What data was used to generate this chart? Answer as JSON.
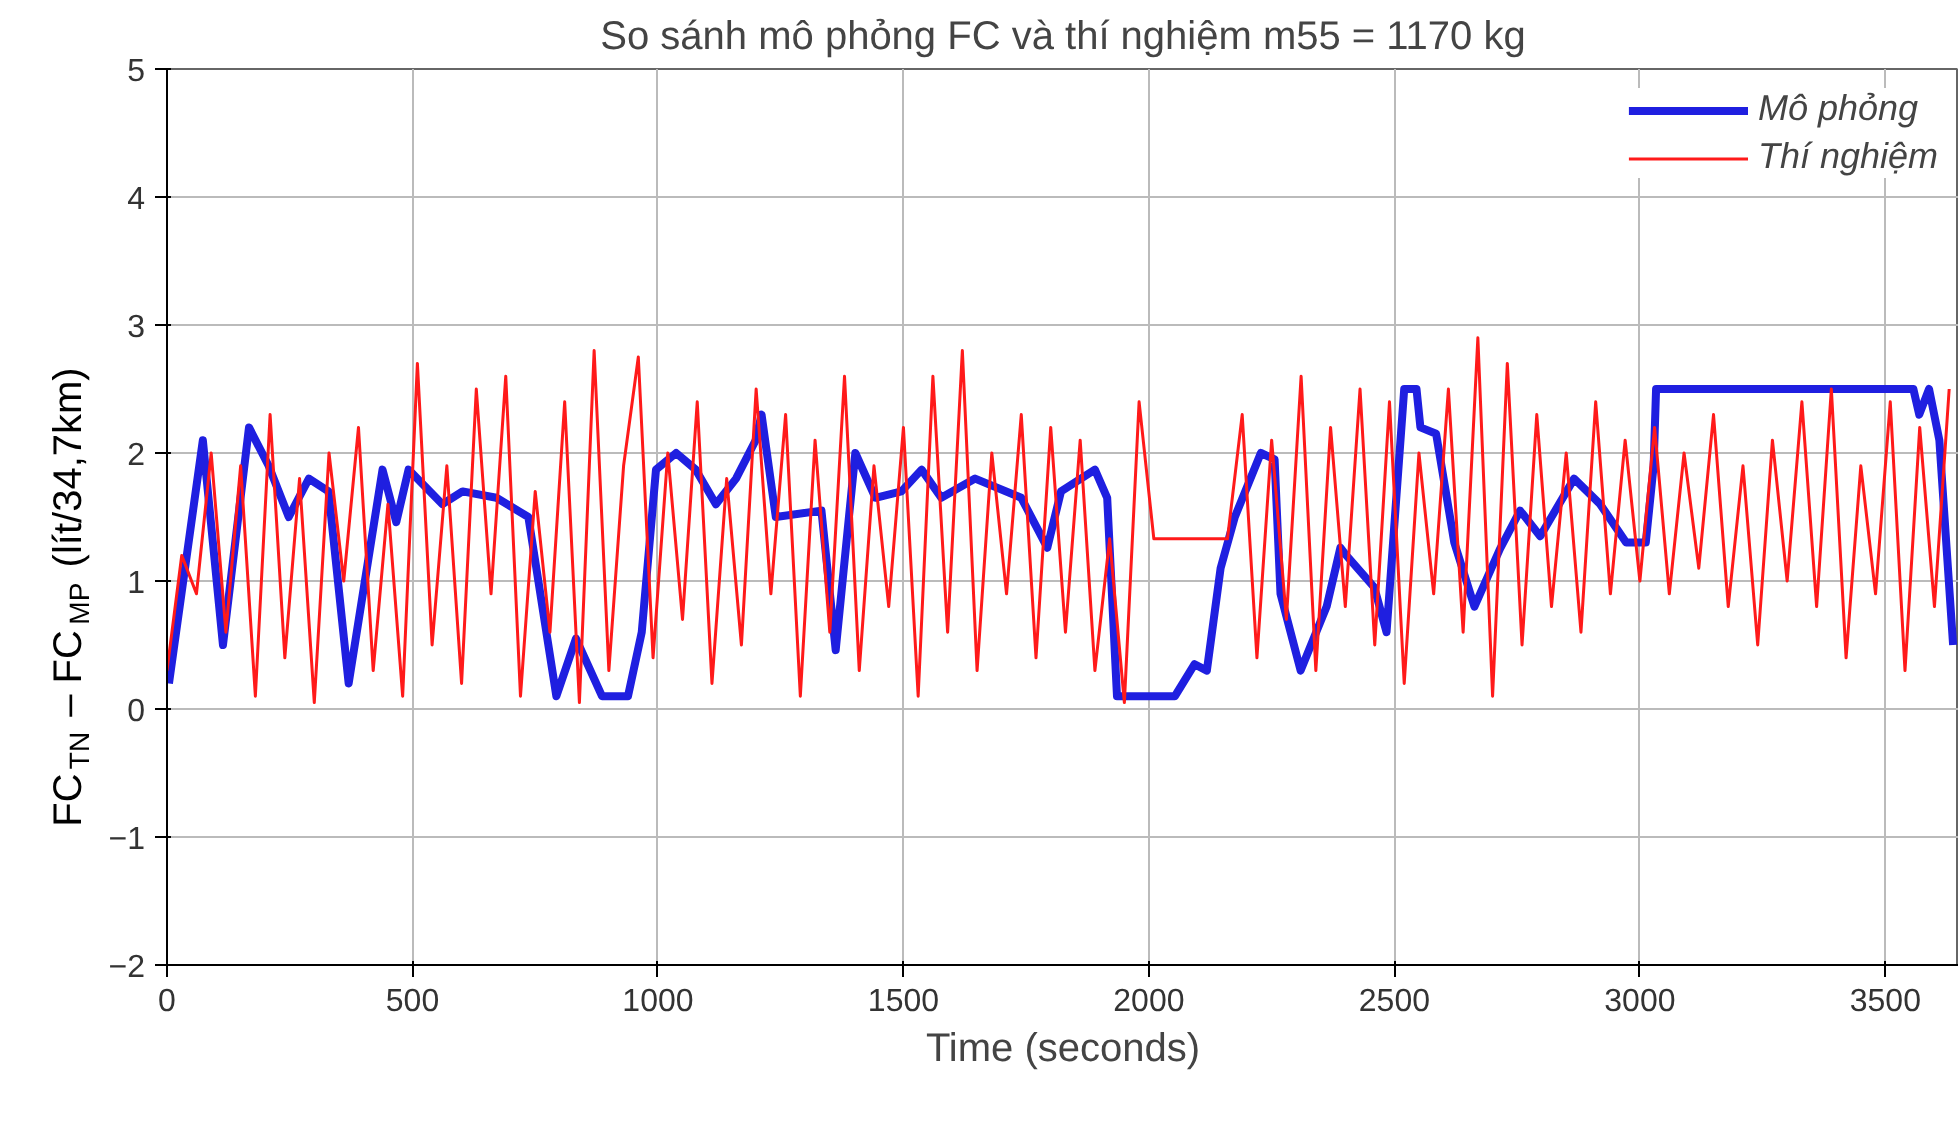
{
  "chart_data": {
    "type": "line",
    "title": "So sánh mô phỏng FC và thí nghiệm m55 = 1170 kg",
    "xlabel": "Time (seconds)",
    "ylabel": "FC$_{TN}$ – FC$_{MP}$ (lít/34,7km)",
    "xlim": [
      0,
      3650
    ],
    "ylim": [
      -2,
      5
    ],
    "xticks": [
      0,
      500,
      1000,
      1500,
      2000,
      2500,
      3000,
      3500
    ],
    "yticks": [
      -2,
      -1,
      0,
      1,
      2,
      3,
      4,
      5
    ],
    "grid": true,
    "legend": "top right",
    "series": [
      {
        "name": "Mô phỏng",
        "color": "#1f1fe0",
        "x": [
          4,
          73,
          114,
          167,
          207,
          248,
          289,
          329,
          370,
          439,
          467,
          492,
          561,
          602,
          671,
          736,
          793,
          833,
          886,
          939,
          967,
          996,
          1037,
          1077,
          1118,
          1159,
          1199,
          1211,
          1240,
          1333,
          1362,
          1402,
          1443,
          1496,
          1537,
          1577,
          1646,
          1740,
          1793,
          1821,
          1890,
          1915,
          1935,
          2053,
          2093,
          2118,
          2146,
          2175,
          2228,
          2256,
          2268,
          2309,
          2362,
          2390,
          2402,
          2459,
          2484,
          2520,
          2545,
          2553,
          2585,
          2622,
          2663,
          2715,
          2756,
          2797,
          2866,
          2919,
          2972,
          3012,
          3028,
          3033,
          3557,
          3569,
          3589,
          3610,
          3638
        ],
        "values": [
          0.2,
          2.1,
          0.5,
          2.2,
          1.9,
          1.5,
          1.8,
          1.7,
          0.2,
          1.87,
          1.46,
          1.87,
          1.6,
          1.7,
          1.65,
          1.5,
          0.1,
          0.55,
          0.1,
          0.1,
          0.6,
          1.87,
          2.0,
          1.87,
          1.6,
          1.8,
          2.1,
          2.3,
          1.5,
          1.55,
          0.46,
          2.0,
          1.65,
          1.7,
          1.87,
          1.65,
          1.8,
          1.65,
          1.26,
          1.7,
          1.87,
          1.65,
          0.1,
          0.1,
          0.35,
          0.3,
          1.1,
          1.5,
          2.0,
          1.95,
          0.9,
          0.3,
          0.8,
          1.26,
          1.2,
          0.95,
          0.6,
          2.5,
          2.5,
          2.2,
          2.15,
          1.3,
          0.8,
          1.25,
          1.55,
          1.35,
          1.8,
          1.6,
          1.3,
          1.3,
          1.9,
          2.5,
          2.5,
          2.3,
          2.5,
          2.1,
          0.5
        ]
      },
      {
        "name": "Thí nghiệm",
        "color": "#ff1a1a",
        "x": [
          0,
          30,
          60,
          90,
          120,
          150,
          180,
          210,
          240,
          270,
          300,
          330,
          360,
          390,
          420,
          450,
          480,
          510,
          540,
          570,
          600,
          630,
          660,
          690,
          720,
          750,
          780,
          810,
          840,
          870,
          900,
          930,
          960,
          990,
          1020,
          1050,
          1080,
          1110,
          1140,
          1170,
          1200,
          1230,
          1260,
          1290,
          1320,
          1350,
          1380,
          1410,
          1440,
          1470,
          1500,
          1530,
          1560,
          1590,
          1620,
          1650,
          1680,
          1710,
          1740,
          1770,
          1800,
          1830,
          1860,
          1890,
          1920,
          1950,
          1980,
          2010,
          2040,
          2070,
          2100,
          2130,
          2160,
          2190,
          2220,
          2250,
          2280,
          2310,
          2340,
          2370,
          2400,
          2430,
          2460,
          2490,
          2520,
          2550,
          2580,
          2610,
          2640,
          2670,
          2700,
          2730,
          2760,
          2790,
          2820,
          2850,
          2880,
          2910,
          2940,
          2970,
          3000,
          3030,
          3060,
          3090,
          3120,
          3150,
          3180,
          3210,
          3240,
          3270,
          3300,
          3330,
          3360,
          3390,
          3420,
          3450,
          3480,
          3510,
          3540,
          3570,
          3600,
          3630
        ],
        "values": [
          0.3,
          1.2,
          0.9,
          2.0,
          0.6,
          1.9,
          0.1,
          2.3,
          0.4,
          1.8,
          0.05,
          2.0,
          1.0,
          2.2,
          0.3,
          1.6,
          0.1,
          2.7,
          0.5,
          1.9,
          0.2,
          2.5,
          0.9,
          2.6,
          0.1,
          1.7,
          0.6,
          2.4,
          0.05,
          2.8,
          0.3,
          1.9,
          2.75,
          0.4,
          2.0,
          0.7,
          2.4,
          0.2,
          1.8,
          0.5,
          2.5,
          0.9,
          2.3,
          0.1,
          2.1,
          0.6,
          2.6,
          0.3,
          1.9,
          0.8,
          2.2,
          0.1,
          2.6,
          0.6,
          2.8,
          0.3,
          2.0,
          0.9,
          2.3,
          0.4,
          2.2,
          0.6,
          2.1,
          0.3,
          1.33,
          0.05,
          2.4,
          1.33,
          1.33,
          1.33,
          1.33,
          1.33,
          1.33,
          2.3,
          0.4,
          2.1,
          0.7,
          2.6,
          0.3,
          2.2,
          0.8,
          2.5,
          0.5,
          2.4,
          0.2,
          2.0,
          0.9,
          2.5,
          0.6,
          2.9,
          0.1,
          2.7,
          0.5,
          2.3,
          0.8,
          2.0,
          0.6,
          2.4,
          0.9,
          2.1,
          1.0,
          2.2,
          0.9,
          2.0,
          1.1,
          2.3,
          0.8,
          1.9,
          0.5,
          2.1,
          1.0,
          2.4,
          0.8,
          2.5,
          0.4,
          1.9,
          0.9,
          2.4,
          0.3,
          2.2,
          0.8,
          2.5
        ]
      }
    ]
  }
}
